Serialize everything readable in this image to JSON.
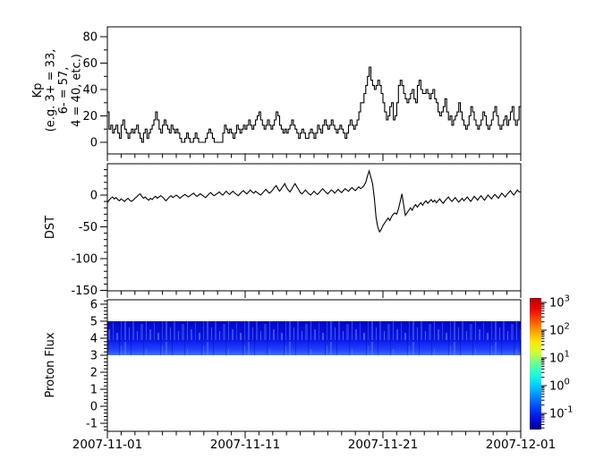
{
  "figure": {
    "background": "#ffffff",
    "frame_color": "#000000",
    "line_color": "#000000"
  },
  "x_axis": {
    "major_tick_labels": [
      "2007-11-01",
      "2007-11-11",
      "2007-11-21",
      "2007-12-01"
    ],
    "major_tick_days": [
      0,
      10,
      20,
      30
    ],
    "minor_tick_interval_days": 1,
    "span_days": 30
  },
  "chart_data": [
    {
      "type": "line",
      "style": "step",
      "title": "",
      "ylabel_lines": [
        "Kp",
        "(e.g. 3+ = 33,",
        "6- = 57,",
        "4 = 40, etc.)"
      ],
      "yticks": [
        80,
        60,
        40,
        20,
        0
      ],
      "minor_y_step": 10,
      "ylim": [
        -8.8,
        87.5
      ],
      "cadence_hours": 3,
      "values": [
        23,
        10,
        13,
        7,
        10,
        13,
        7,
        3,
        13,
        17,
        10,
        7,
        3,
        7,
        10,
        7,
        10,
        13,
        7,
        3,
        0,
        7,
        10,
        3,
        7,
        10,
        13,
        17,
        23,
        17,
        10,
        7,
        13,
        17,
        13,
        10,
        7,
        13,
        10,
        7,
        10,
        7,
        3,
        0,
        0,
        3,
        7,
        3,
        0,
        0,
        3,
        7,
        3,
        0,
        0,
        0,
        0,
        3,
        7,
        10,
        7,
        3,
        0,
        0,
        0,
        0,
        0,
        7,
        13,
        10,
        7,
        10,
        7,
        3,
        7,
        13,
        10,
        7,
        10,
        13,
        10,
        13,
        17,
        13,
        10,
        13,
        17,
        20,
        23,
        17,
        13,
        10,
        13,
        17,
        13,
        10,
        13,
        17,
        23,
        20,
        13,
        10,
        7,
        10,
        7,
        10,
        13,
        17,
        13,
        10,
        7,
        3,
        7,
        10,
        7,
        3,
        3,
        7,
        10,
        7,
        3,
        7,
        13,
        10,
        7,
        13,
        17,
        13,
        10,
        13,
        17,
        13,
        10,
        7,
        10,
        13,
        10,
        7,
        3,
        7,
        13,
        17,
        13,
        10,
        13,
        17,
        23,
        30,
        30,
        37,
        43,
        50,
        57,
        47,
        43,
        40,
        43,
        47,
        43,
        37,
        30,
        23,
        17,
        20,
        27,
        30,
        17,
        20,
        30,
        43,
        47,
        43,
        37,
        33,
        30,
        33,
        37,
        40,
        33,
        30,
        43,
        47,
        40,
        37,
        37,
        40,
        37,
        33,
        37,
        40,
        33,
        30,
        23,
        20,
        23,
        27,
        33,
        23,
        17,
        20,
        13,
        17,
        20,
        23,
        30,
        23,
        17,
        13,
        10,
        13,
        20,
        27,
        23,
        17,
        13,
        10,
        13,
        17,
        23,
        20,
        13,
        10,
        13,
        17,
        23,
        27,
        20,
        13,
        10,
        13,
        17,
        20,
        13,
        17,
        23,
        27,
        17,
        13,
        17,
        27
      ]
    },
    {
      "type": "line",
      "style": "line",
      "title": "",
      "ylabel": "DST",
      "yticks": [
        0,
        -50,
        -100,
        -150
      ],
      "minor_y_step": 10,
      "ylim": [
        -150.7,
        49.3
      ],
      "cadence_hours": 3,
      "values": [
        -12,
        -8,
        -5,
        -3,
        -6,
        -4,
        -7,
        -9,
        -6,
        -8,
        -10,
        -7,
        -5,
        -8,
        -10,
        -8,
        -5,
        -3,
        0,
        2,
        -2,
        -5,
        -3,
        -6,
        -8,
        -5,
        -7,
        -4,
        -2,
        -5,
        -3,
        -1,
        -3,
        -6,
        -9,
        -6,
        -3,
        -1,
        -4,
        -2,
        0,
        -2,
        -5,
        -3,
        -1,
        1,
        -1,
        -3,
        -1,
        1,
        3,
        0,
        -2,
        0,
        2,
        0,
        -2,
        -4,
        -1,
        2,
        4,
        1,
        -1,
        1,
        3,
        5,
        2,
        0,
        3,
        6,
        3,
        1,
        4,
        6,
        3,
        1,
        -1,
        2,
        5,
        7,
        4,
        2,
        5,
        8,
        5,
        3,
        6,
        4,
        2,
        0,
        3,
        6,
        9,
        6,
        3,
        5,
        8,
        12,
        15,
        10,
        6,
        10,
        14,
        18,
        12,
        8,
        5,
        9,
        14,
        18,
        13,
        9,
        4,
        2,
        5,
        8,
        5,
        2,
        0,
        3,
        6,
        3,
        1,
        4,
        7,
        10,
        7,
        4,
        2,
        5,
        8,
        6,
        3,
        6,
        9,
        6,
        4,
        7,
        10,
        8,
        6,
        9,
        12,
        9,
        7,
        10,
        13,
        10,
        12,
        15,
        20,
        30,
        38,
        28,
        18,
        -5,
        -35,
        -50,
        -58,
        -54,
        -48,
        -44,
        -40,
        -36,
        -40,
        -34,
        -30,
        -28,
        -30,
        -22,
        -10,
        2,
        -15,
        -32,
        -28,
        -24,
        -20,
        -24,
        -18,
        -15,
        -19,
        -15,
        -12,
        -16,
        -12,
        -9,
        -13,
        -10,
        -7,
        -11,
        -8,
        -12,
        -9,
        -6,
        -10,
        -13,
        -9,
        -6,
        -3,
        -7,
        -10,
        -7,
        -4,
        -8,
        -11,
        -8,
        -5,
        -9,
        -6,
        -3,
        -7,
        -10,
        -6,
        -2,
        -5,
        -8,
        -4,
        -1,
        -5,
        -8,
        -4,
        0,
        -3,
        -6,
        -2,
        1,
        -2,
        -5,
        -1,
        3,
        0,
        -3,
        1,
        4,
        7,
        3,
        0,
        4,
        8,
        5
      ]
    },
    {
      "type": "heatmap",
      "title": "",
      "ylabel": "Proton Flux",
      "yticks": [
        6,
        5,
        4,
        3,
        2,
        1,
        0,
        -1
      ],
      "minor_y_step": 0.2,
      "ylim": [
        -1.47,
        6.26
      ],
      "band": {
        "y_top": 5,
        "y_bottom": 3,
        "color_top": "#0006c8",
        "color_bottom": "#3a66ff",
        "note": "uniform low-flux blue band with vertical streaks, constant over full time range"
      },
      "colorbar": {
        "scale": "log",
        "base": "10",
        "exponents": [
          3,
          2,
          1,
          0,
          -1
        ],
        "colormap_top_to_bottom": [
          "#b30000",
          "#f00000",
          "#ff4d00",
          "#ff9e00",
          "#ffe600",
          "#ccff33",
          "#66ff99",
          "#1affd9",
          "#00ccff",
          "#0088ff",
          "#0044ff",
          "#0011dd",
          "#000088"
        ]
      }
    }
  ]
}
